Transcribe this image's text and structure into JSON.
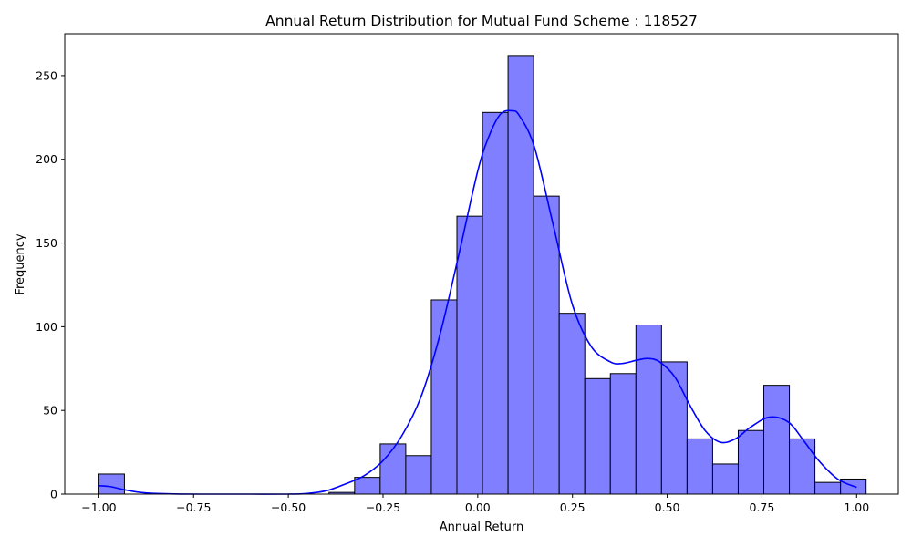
{
  "chart_data": {
    "type": "bar",
    "subtype": "histogram-with-kde",
    "title": "Annual Return Distribution for Mutual Fund Scheme : 118527",
    "xlabel": "Annual Return",
    "ylabel": "Frequency",
    "xlim": [
      -1.09,
      1.11
    ],
    "ylim": [
      0,
      275
    ],
    "x_ticks": [
      -1.0,
      -0.75,
      -0.5,
      -0.25,
      0.0,
      0.25,
      0.5,
      0.75,
      1.0
    ],
    "x_tick_labels": [
      "−1.00",
      "−0.75",
      "−0.50",
      "−0.25",
      "0.00",
      "0.25",
      "0.50",
      "0.75",
      "1.00"
    ],
    "y_ticks": [
      0,
      50,
      100,
      150,
      200,
      250
    ],
    "y_tick_labels": [
      "0",
      "50",
      "100",
      "150",
      "200",
      "250"
    ],
    "grid": false,
    "legend": "none",
    "bar_fill_color": "#7f7fff",
    "bar_edge_color": "#000000",
    "kde_color": "#0000ff",
    "bins": [
      {
        "left": -1.0,
        "right": -0.9325,
        "count": 12
      },
      {
        "left": -0.9325,
        "right": -0.865,
        "count": 0
      },
      {
        "left": -0.865,
        "right": -0.7975,
        "count": 0
      },
      {
        "left": -0.7975,
        "right": -0.73,
        "count": 0
      },
      {
        "left": -0.73,
        "right": -0.6625,
        "count": 0
      },
      {
        "left": -0.6625,
        "right": -0.595,
        "count": 0
      },
      {
        "left": -0.595,
        "right": -0.5275,
        "count": 0
      },
      {
        "left": -0.5275,
        "right": -0.46,
        "count": 0
      },
      {
        "left": -0.46,
        "right": -0.3925,
        "count": 0
      },
      {
        "left": -0.3925,
        "right": -0.325,
        "count": 1
      },
      {
        "left": -0.325,
        "right": -0.2575,
        "count": 10
      },
      {
        "left": -0.2575,
        "right": -0.19,
        "count": 30
      },
      {
        "left": -0.19,
        "right": -0.1225,
        "count": 23
      },
      {
        "left": -0.1225,
        "right": -0.055,
        "count": 116
      },
      {
        "left": -0.055,
        "right": 0.0125,
        "count": 166
      },
      {
        "left": 0.0125,
        "right": 0.08,
        "count": 228
      },
      {
        "left": 0.08,
        "right": 0.1475,
        "count": 262
      },
      {
        "left": 0.1475,
        "right": 0.215,
        "count": 178
      },
      {
        "left": 0.215,
        "right": 0.2825,
        "count": 108
      },
      {
        "left": 0.2825,
        "right": 0.35,
        "count": 69
      },
      {
        "left": 0.35,
        "right": 0.4175,
        "count": 72
      },
      {
        "left": 0.4175,
        "right": 0.485,
        "count": 101
      },
      {
        "left": 0.485,
        "right": 0.5525,
        "count": 79
      },
      {
        "left": 0.5525,
        "right": 0.62,
        "count": 33
      },
      {
        "left": 0.62,
        "right": 0.6875,
        "count": 18
      },
      {
        "left": 0.6875,
        "right": 0.755,
        "count": 38
      },
      {
        "left": 0.755,
        "right": 0.8225,
        "count": 65
      },
      {
        "left": 0.8225,
        "right": 0.89,
        "count": 33
      },
      {
        "left": 0.89,
        "right": 0.9575,
        "count": 7
      },
      {
        "left": 0.9575,
        "right": 1.025,
        "count": 9
      }
    ],
    "kde": {
      "x": [
        -1.0,
        -0.97,
        -0.93,
        -0.88,
        -0.8,
        -0.7,
        -0.6,
        -0.5,
        -0.45,
        -0.4,
        -0.35,
        -0.3,
        -0.25,
        -0.2,
        -0.15,
        -0.1,
        -0.05,
        0.0,
        0.03,
        0.06,
        0.09,
        0.11,
        0.15,
        0.2,
        0.25,
        0.3,
        0.35,
        0.38,
        0.42,
        0.45,
        0.48,
        0.52,
        0.56,
        0.6,
        0.64,
        0.68,
        0.72,
        0.77,
        0.82,
        0.86,
        0.9,
        0.95,
        1.0
      ],
      "y": [
        5,
        4.5,
        2.5,
        0.8,
        0.1,
        0,
        0,
        0,
        0.4,
        2,
        6,
        11,
        20,
        35,
        58,
        95,
        143,
        193,
        214,
        227,
        229,
        226,
        207,
        160,
        113,
        88,
        79,
        78,
        80,
        81,
        79,
        70,
        53,
        38,
        31,
        33,
        40,
        46,
        43,
        32,
        20,
        9,
        4
      ]
    }
  }
}
